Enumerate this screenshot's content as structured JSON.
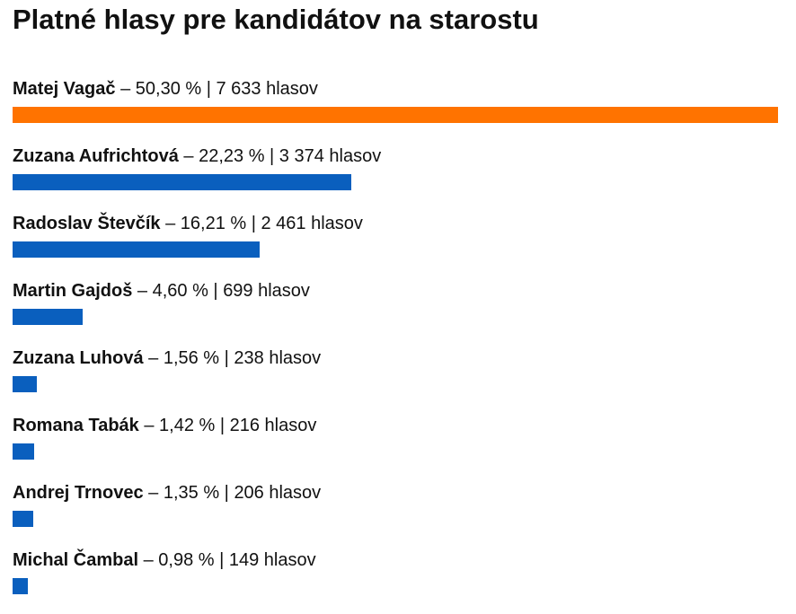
{
  "title": "Platné hlasy pre kandidátov na starostu",
  "colors": {
    "winner": "#ff7300",
    "other": "#0a5fbe"
  },
  "chart_data": {
    "type": "bar",
    "orientation": "horizontal",
    "title": "Platné hlasy pre kandidátov na starostu",
    "categories": [
      "Matej Vagač",
      "Zuzana Aufrichtová",
      "Radoslav Števčík",
      "Martin Gajdoš",
      "Zuzana Luhová",
      "Romana Tabák",
      "Andrej Trnovec",
      "Michal Čambal"
    ],
    "series": [
      {
        "values": [
          7633,
          3374,
          2461,
          699,
          238,
          216,
          206,
          149
        ]
      }
    ],
    "items": [
      {
        "name": "Matej Vagač",
        "sep": " – ",
        "percent": "50,30 %",
        "pipe": " | ",
        "votes_text": "7 633 hlasov",
        "votes": 7633,
        "highlight": true
      },
      {
        "name": "Zuzana Aufrichtová",
        "sep": " – ",
        "percent": "22,23 %",
        "pipe": " | ",
        "votes_text": "3 374 hlasov",
        "votes": 3374,
        "highlight": false
      },
      {
        "name": "Radoslav Števčík",
        "sep": " – ",
        "percent": "16,21 %",
        "pipe": " | ",
        "votes_text": "2 461 hlasov",
        "votes": 2461,
        "highlight": false
      },
      {
        "name": "Martin Gajdoš",
        "sep": " – ",
        "percent": "4,60 %",
        "pipe": " | ",
        "votes_text": "699 hlasov",
        "votes": 699,
        "highlight": false
      },
      {
        "name": "Zuzana Luhová",
        "sep": " – ",
        "percent": "1,56 %",
        "pipe": " | ",
        "votes_text": "238 hlasov",
        "votes": 238,
        "highlight": false
      },
      {
        "name": "Romana Tabák",
        "sep": " – ",
        "percent": "1,42 %",
        "pipe": " | ",
        "votes_text": "216 hlasov",
        "votes": 216,
        "highlight": false
      },
      {
        "name": "Andrej Trnovec",
        "sep": " – ",
        "percent": "1,35 %",
        "pipe": " | ",
        "votes_text": "206 hlasov",
        "votes": 206,
        "highlight": false
      },
      {
        "name": "Michal Čambal",
        "sep": " – ",
        "percent": "0,98 %",
        "pipe": " | ",
        "votes_text": "149 hlasov",
        "votes": 149,
        "highlight": false
      }
    ],
    "xlim": [
      0,
      7633
    ],
    "grid": false,
    "legend": "none"
  }
}
